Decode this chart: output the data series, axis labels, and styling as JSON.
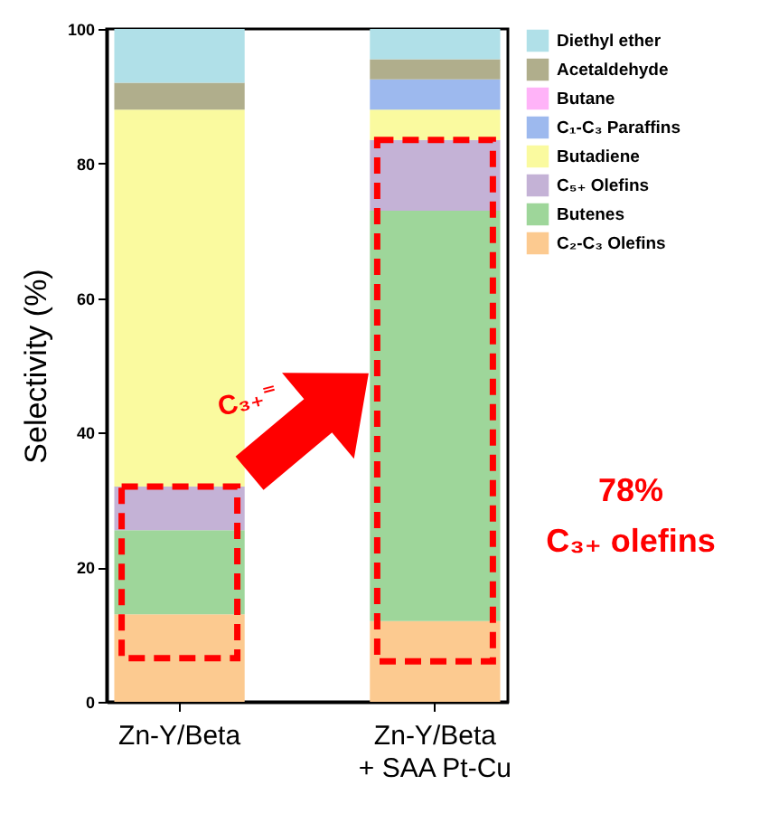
{
  "chart_data": {
    "type": "bar",
    "stacked": true,
    "ylabel": "Selectivity (%)",
    "categories": [
      "Zn-Y/Beta",
      "Zn-Y/Beta\n+ SAA Pt-Cu"
    ],
    "series": [
      {
        "name": "C₂-C₃ Olefins",
        "color": "#fcca90",
        "values": [
          13,
          12
        ]
      },
      {
        "name": "Butenes",
        "color": "#9ed69a",
        "values": [
          12.5,
          61
        ]
      },
      {
        "name": "C₅₊ Olefins",
        "color": "#c4b2d6",
        "values": [
          6.5,
          10.5
        ]
      },
      {
        "name": "Butadiene",
        "color": "#fafa9f",
        "values": [
          56,
          4.5
        ]
      },
      {
        "name": "C₁-C₃ Paraffins",
        "color": "#9db9ee",
        "values": [
          0,
          4.5
        ]
      },
      {
        "name": "Butane",
        "color": "#ffb3f8",
        "values": [
          0,
          0
        ]
      },
      {
        "name": "Acetaldehyde",
        "color": "#b0ae8c",
        "values": [
          4,
          3
        ]
      },
      {
        "name": "Diethyl ether",
        "color": "#b0e0e8",
        "values": [
          8,
          4.5
        ]
      }
    ],
    "ylim": [
      0,
      100
    ],
    "yticks": [
      0,
      20,
      40,
      60,
      80,
      100
    ],
    "legend": "right",
    "grid": false,
    "annotations": [
      "C₃₊⁼",
      "78%",
      "C₃₊ olefins"
    ]
  }
}
